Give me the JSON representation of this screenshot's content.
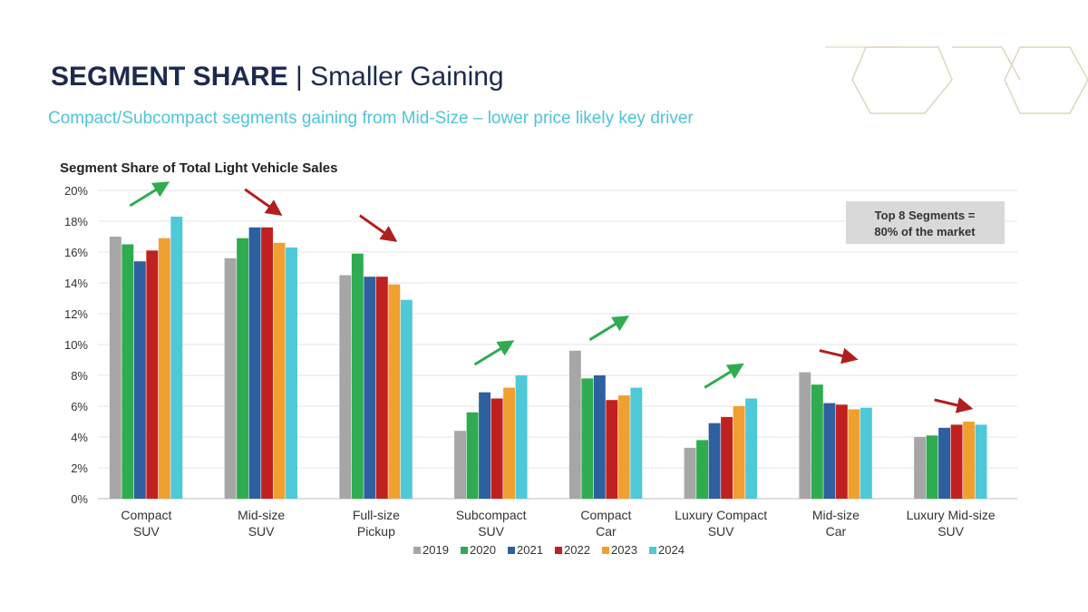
{
  "header": {
    "title_bold": "SEGMENT SHARE",
    "title_sep": " | ",
    "title_light": "Smaller Gaining",
    "subtitle": "Compact/Subcompact segments gaining from Mid-Size – lower price likely key driver"
  },
  "note": {
    "line1": "Top 8 Segments =",
    "line2": "80% of the market"
  },
  "colors": {
    "2019": "#a6a6a6",
    "2020": "#2eac4f",
    "2021": "#2e5f9e",
    "2022": "#c0201f",
    "2023": "#f0a030",
    "2024": "#4fc8d8",
    "up_arrow": "#2eac4f",
    "down_arrow": "#b01e1e",
    "title": "#1b2a4e",
    "subtitle": "#4fc3d9",
    "note_bg": "#d9d9d9"
  },
  "chart_data": {
    "type": "bar",
    "title": "Segment Share of Total Light Vehicle Sales",
    "xlabel": "",
    "ylabel": "",
    "ylim": [
      0,
      20
    ],
    "yticks": [
      "0%",
      "2%",
      "4%",
      "6%",
      "8%",
      "10%",
      "12%",
      "14%",
      "16%",
      "18%",
      "20%"
    ],
    "grid": true,
    "legend_position": "bottom",
    "categories": [
      [
        "Compact",
        "SUV"
      ],
      [
        "Mid-size",
        "SUV"
      ],
      [
        "Full-size",
        "Pickup"
      ],
      [
        "Subcompact",
        "SUV"
      ],
      [
        "Compact",
        "Car"
      ],
      [
        "Luxury Compact",
        "SUV"
      ],
      [
        "Mid-size",
        "Car"
      ],
      [
        "Luxury Mid-size",
        "SUV"
      ]
    ],
    "series": [
      {
        "name": "2019",
        "values": [
          17.0,
          15.6,
          14.5,
          4.4,
          9.6,
          3.3,
          8.2,
          4.0
        ]
      },
      {
        "name": "2020",
        "values": [
          16.5,
          16.9,
          15.9,
          5.6,
          7.8,
          3.8,
          7.4,
          4.1
        ]
      },
      {
        "name": "2021",
        "values": [
          15.4,
          17.6,
          14.4,
          6.9,
          8.0,
          4.9,
          6.2,
          4.6
        ]
      },
      {
        "name": "2022",
        "values": [
          16.1,
          17.6,
          14.4,
          6.5,
          6.4,
          5.3,
          6.1,
          4.8
        ]
      },
      {
        "name": "2023",
        "values": [
          16.9,
          16.6,
          13.9,
          7.2,
          6.7,
          6.0,
          5.8,
          5.0
        ]
      },
      {
        "name": "2024",
        "values": [
          18.3,
          16.3,
          12.9,
          8.0,
          7.2,
          6.5,
          5.9,
          4.8
        ]
      }
    ],
    "trend_arrows": [
      "up",
      "down",
      "down",
      "up",
      "up",
      "up",
      "down",
      "down"
    ]
  }
}
